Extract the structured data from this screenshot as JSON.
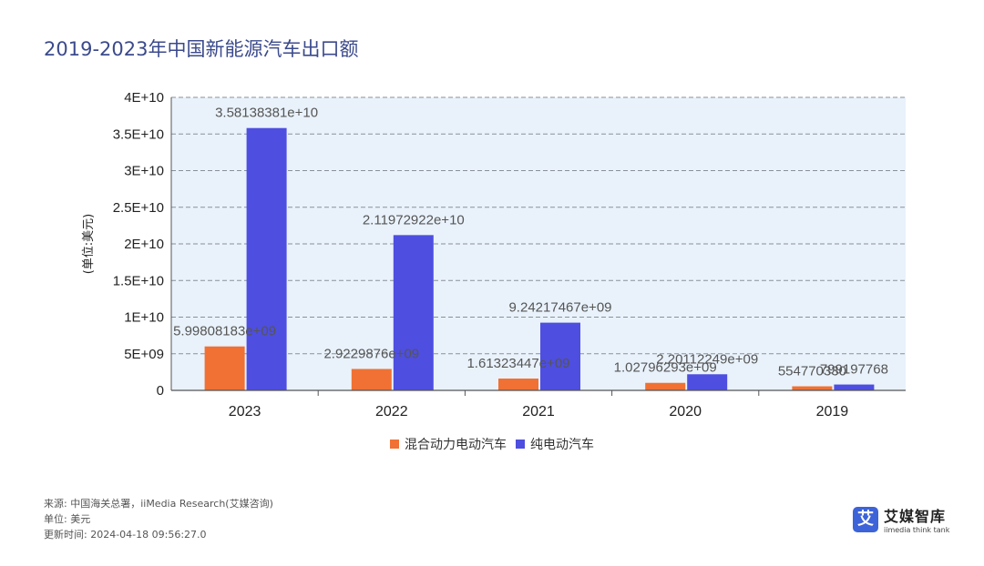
{
  "chart_data": {
    "type": "bar",
    "title": "2019-2023年中国新能源汽车出口额",
    "ylabel": "(单位:美元)",
    "xlabel": "",
    "ylim": [
      0,
      40000000000
    ],
    "yticks": [
      0,
      5000000000,
      10000000000,
      15000000000,
      20000000000,
      25000000000,
      30000000000,
      35000000000,
      40000000000
    ],
    "ytick_labels": [
      "0",
      "5E+09",
      "1E+10",
      "1.5E+10",
      "2E+10",
      "2.5E+10",
      "3E+10",
      "3.5E+10",
      "4E+10"
    ],
    "categories": [
      "2023",
      "2022",
      "2021",
      "2020",
      "2019"
    ],
    "series": [
      {
        "name": "混合动力电动汽车",
        "color": "#f07133",
        "values": [
          5998081830,
          2922987600,
          1613234470,
          1027962930,
          554770330
        ],
        "labels": [
          "5.99808183e+09",
          "2.9229876e+09",
          "1.61323447e+09",
          "1.02796293e+09",
          "554770330"
        ]
      },
      {
        "name": "纯电动汽车",
        "color": "#4e4ee0",
        "values": [
          35813838100,
          21197292200,
          9242174670,
          2201122490,
          799197768
        ],
        "labels": [
          "3.58138381e+10",
          "2.11972922e+10",
          "9.24217467e+09",
          "2.20112249e+09",
          "799197768"
        ]
      }
    ],
    "grid": true,
    "legend": "bottom-center"
  },
  "footer": {
    "source": "来源: 中国海关总署，iiMedia Research(艾媒咨询)",
    "unit": "单位: 美元",
    "updated": "更新时间: 2024-04-18 09:56:27.0"
  },
  "logo": {
    "mark": "艾",
    "name": "艾媒智库",
    "tagline": "iimedia think tank"
  }
}
